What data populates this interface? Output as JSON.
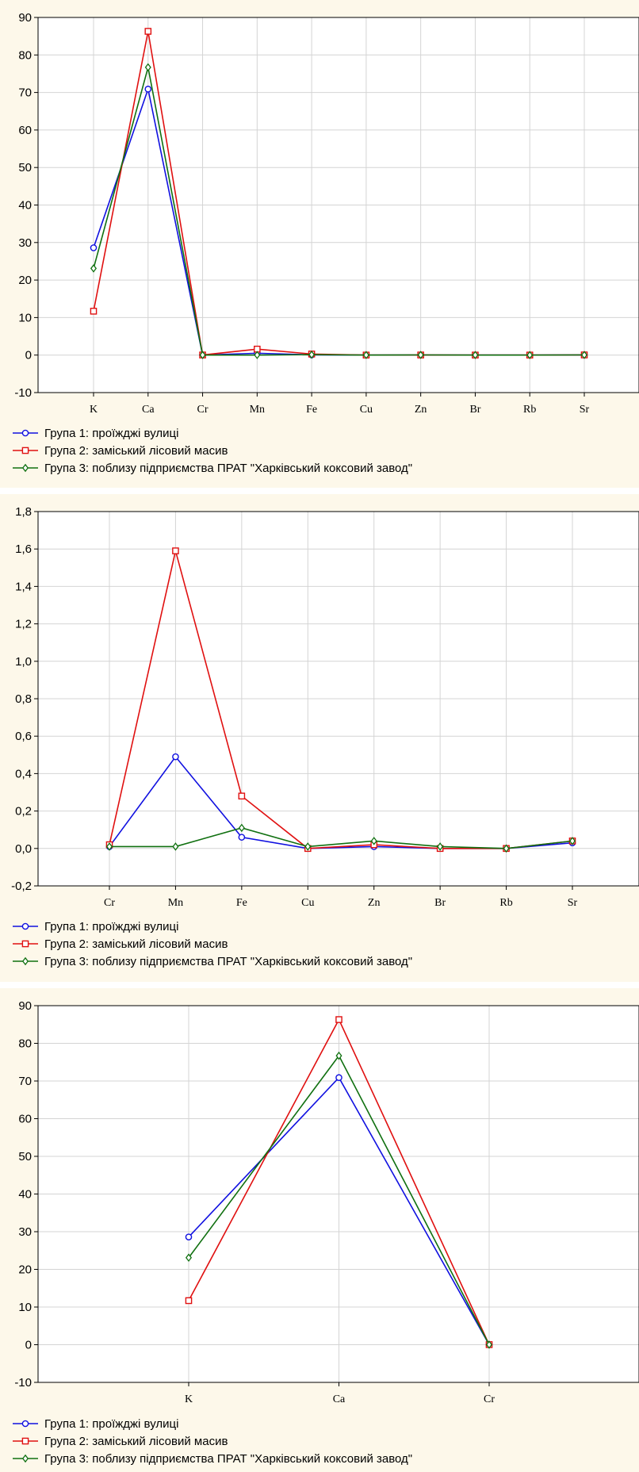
{
  "legend": [
    {
      "name": "Група 1: проїжджі вулиці",
      "color": "#1010e0",
      "marker": "circle"
    },
    {
      "name": "Група 2: заміський лісовий масив",
      "color": "#e01010",
      "marker": "square"
    },
    {
      "name": "Група 3: поблизу підприємства ПРАТ \"Харківський коксовий завод\"",
      "color": "#107010",
      "marker": "diamond"
    }
  ],
  "chart_data": [
    {
      "type": "line",
      "categories": [
        "K",
        "Ca",
        "Cr",
        "Mn",
        "Fe",
        "Cu",
        "Zn",
        "Br",
        "Rb",
        "Sr"
      ],
      "ylim": [
        -10,
        90
      ],
      "yticks": [
        "-10",
        "0",
        "10",
        "20",
        "30",
        "40",
        "50",
        "60",
        "70",
        "80",
        "90"
      ],
      "grid": true,
      "legend_position": "bottom-left",
      "series": [
        {
          "name": "Група 1: проїжджі вулиці",
          "values": [
            28.6,
            70.9,
            0.01,
            0.49,
            0.06,
            0.0,
            0.01,
            0.0,
            0.0,
            0.03
          ]
        },
        {
          "name": "Група 2: заміський лісовий масив",
          "values": [
            11.7,
            86.3,
            0.02,
            1.59,
            0.28,
            0.0,
            0.02,
            0.0,
            0.0,
            0.04
          ]
        },
        {
          "name": "Група 3: поблизу підприємства ПРАТ \"Харківський коксовий завод\"",
          "values": [
            23.1,
            76.7,
            0.01,
            0.01,
            0.11,
            0.01,
            0.04,
            0.01,
            0.0,
            0.04
          ]
        }
      ]
    },
    {
      "type": "line",
      "categories": [
        "Cr",
        "Mn",
        "Fe",
        "Cu",
        "Zn",
        "Br",
        "Rb",
        "Sr"
      ],
      "ylim": [
        -0.2,
        1.8
      ],
      "yticks": [
        "-0,2",
        "0,0",
        "0,2",
        "0,4",
        "0,6",
        "0,8",
        "1,0",
        "1,2",
        "1,4",
        "1,6",
        "1,8"
      ],
      "grid": true,
      "legend_position": "bottom-left",
      "series": [
        {
          "name": "Група 1: проїжджі вулиці",
          "values": [
            0.01,
            0.49,
            0.06,
            0.0,
            0.01,
            0.0,
            0.0,
            0.03
          ]
        },
        {
          "name": "Група 2: заміський лісовий масив",
          "values": [
            0.02,
            1.59,
            0.28,
            0.0,
            0.02,
            0.0,
            0.0,
            0.04
          ]
        },
        {
          "name": "Група 3: поблизу підприємства ПРАТ \"Харківський коксовий завод\"",
          "values": [
            0.01,
            0.01,
            0.11,
            0.01,
            0.04,
            0.01,
            0.0,
            0.04
          ]
        }
      ]
    },
    {
      "type": "line",
      "categories": [
        "K",
        "Ca",
        "Cr"
      ],
      "ylim": [
        -10,
        90
      ],
      "yticks": [
        "-10",
        "0",
        "10",
        "20",
        "30",
        "40",
        "50",
        "60",
        "70",
        "80",
        "90"
      ],
      "grid": true,
      "legend_position": "bottom-left",
      "series": [
        {
          "name": "Група 1: проїжджі вулиці",
          "values": [
            28.6,
            70.9,
            0.01
          ]
        },
        {
          "name": "Група 2: заміський лісовий масив",
          "values": [
            11.7,
            86.3,
            0.02
          ]
        },
        {
          "name": "Група 3: поблизу підприємства ПРАТ \"Харківський коксовий завод\"",
          "values": [
            23.1,
            76.7,
            0.01
          ]
        }
      ]
    }
  ]
}
